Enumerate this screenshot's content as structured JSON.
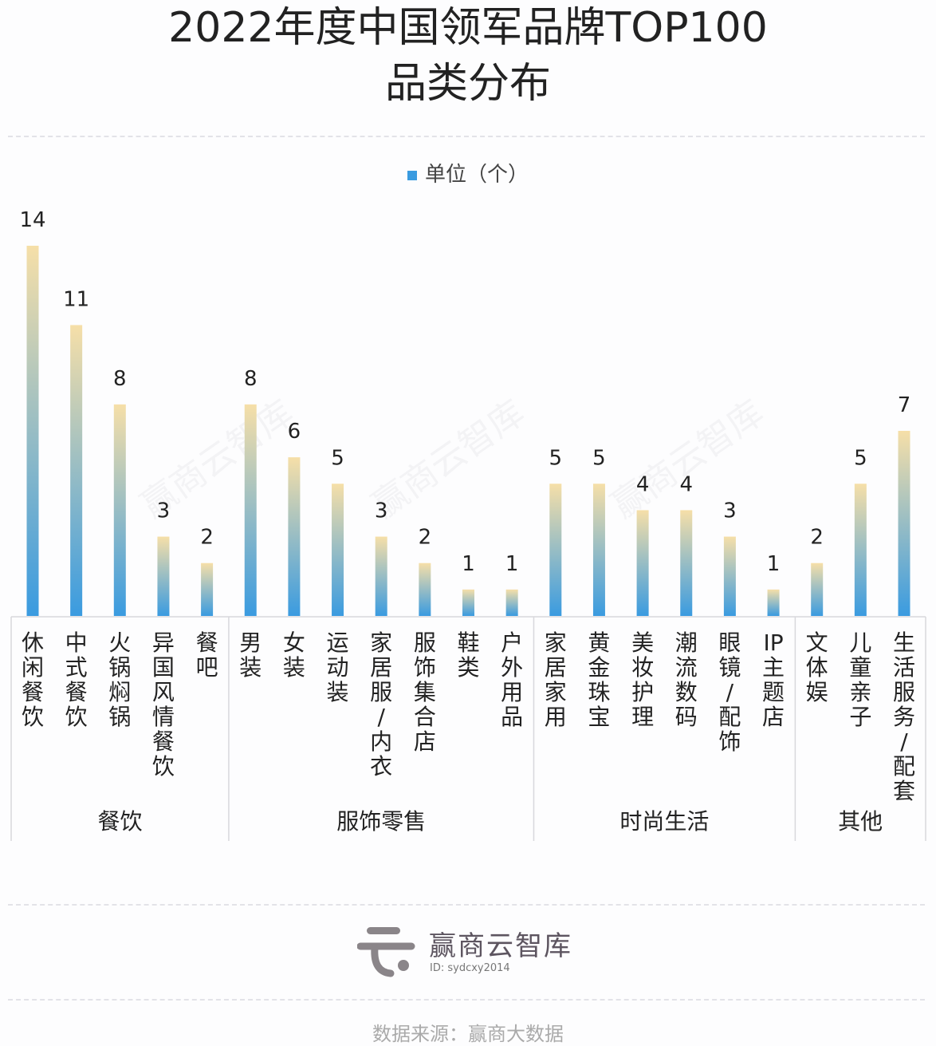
{
  "chart_data": {
    "type": "bar",
    "title": "2022年度中国领军品牌TOP100",
    "subtitle": "品类分布",
    "legend": "单位（个）",
    "legend_position": "top",
    "grid": false,
    "ylim": [
      0,
      14
    ],
    "categories": [
      "休闲餐饮",
      "中式餐饮",
      "火锅焖锅",
      "异国风情餐饮",
      "餐吧",
      "男装",
      "女装",
      "运动装",
      "家居服/内衣",
      "服饰集合店",
      "鞋类",
      "户外用品",
      "家居家用",
      "黄金珠宝",
      "美妆护理",
      "潮流数码",
      "眼镜/配饰",
      "IP主题店",
      "文体娱",
      "儿童亲子",
      "生活服务/配套"
    ],
    "values": [
      14,
      11,
      8,
      3,
      2,
      8,
      6,
      5,
      3,
      2,
      1,
      1,
      5,
      5,
      4,
      4,
      3,
      1,
      2,
      5,
      7
    ],
    "groups": [
      {
        "label": "餐饮",
        "count": 5
      },
      {
        "label": "服饰零售",
        "count": 7
      },
      {
        "label": "时尚生活",
        "count": 6
      },
      {
        "label": "其他",
        "count": 3
      }
    ],
    "colors": {
      "bar_bottom": "#3a9be0",
      "bar_top": "#f6dfa8"
    }
  },
  "watermark": "赢商云智库",
  "logo": {
    "name": "赢商云智库",
    "id": "ID: sydcxy2014"
  },
  "source": "数据来源：赢商大数据"
}
